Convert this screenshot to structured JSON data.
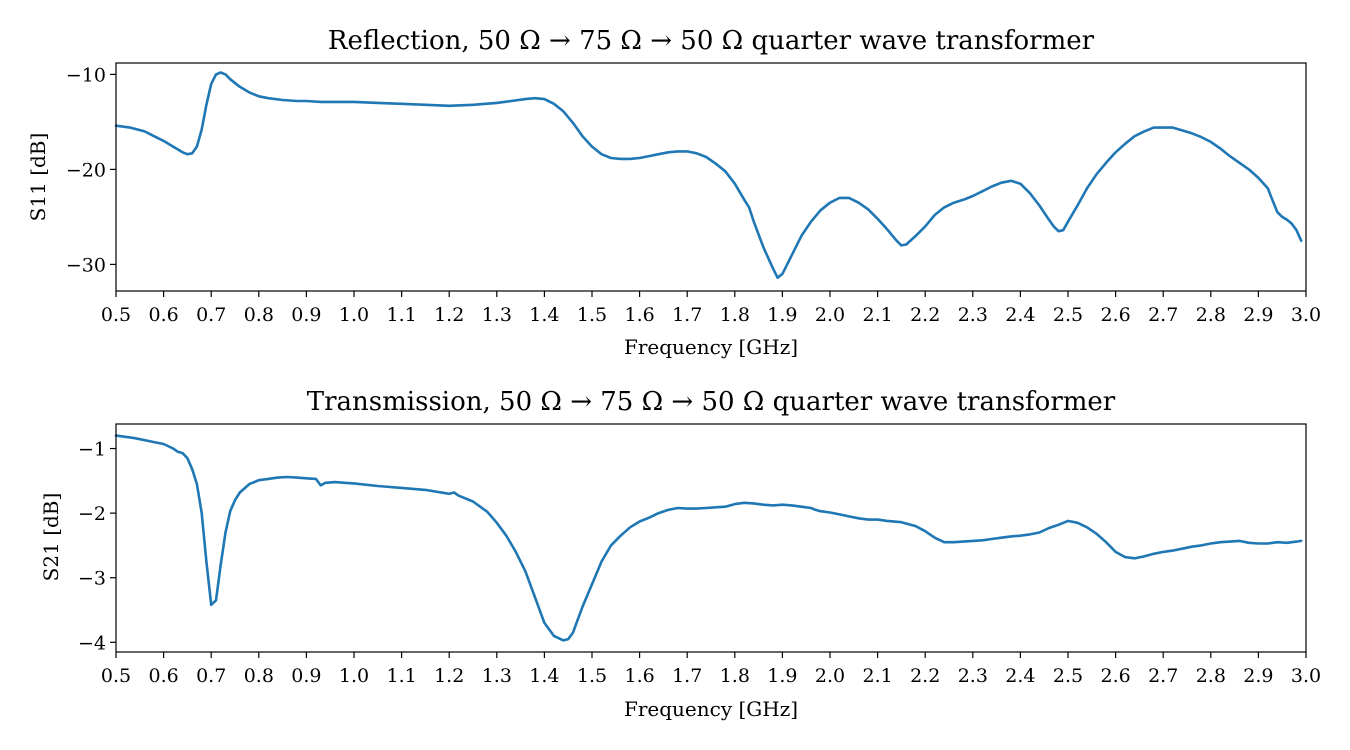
{
  "chart_data": [
    {
      "type": "line",
      "title": "Reflection, 50 Ω → 75 Ω → 50 Ω quarter wave transformer",
      "xlabel": "Frequency [GHz]",
      "ylabel": "S11 [dB]",
      "xlim": [
        0.5,
        3.0
      ],
      "ylim": [
        -32.8,
        -8.8
      ],
      "xticks": [
        0.5,
        0.6,
        0.7,
        0.8,
        0.9,
        1.0,
        1.1,
        1.2,
        1.3,
        1.4,
        1.5,
        1.6,
        1.7,
        1.8,
        1.9,
        2.0,
        2.1,
        2.2,
        2.3,
        2.4,
        2.5,
        2.6,
        2.7,
        2.8,
        2.9,
        3.0
      ],
      "xtick_labels": [
        "0.5",
        "0.6",
        "0.7",
        "0.8",
        "0.9",
        "1.0",
        "1.1",
        "1.2",
        "1.3",
        "1.4",
        "1.5",
        "1.6",
        "1.7",
        "1.8",
        "1.9",
        "2.0",
        "2.1",
        "2.2",
        "2.3",
        "2.4",
        "2.5",
        "2.6",
        "2.7",
        "2.8",
        "2.9",
        "3.0"
      ],
      "yticks": [
        -10,
        -20,
        -30
      ],
      "ytick_labels": [
        "−10",
        "−20",
        "−30"
      ],
      "grid": false,
      "series": [
        {
          "color": "#1f77b4",
          "x": [
            0.5,
            0.53,
            0.56,
            0.58,
            0.6,
            0.62,
            0.64,
            0.65,
            0.66,
            0.67,
            0.68,
            0.69,
            0.7,
            0.71,
            0.72,
            0.73,
            0.74,
            0.76,
            0.78,
            0.8,
            0.82,
            0.85,
            0.88,
            0.9,
            0.93,
            0.95,
            1.0,
            1.05,
            1.1,
            1.15,
            1.2,
            1.25,
            1.3,
            1.33,
            1.36,
            1.38,
            1.4,
            1.42,
            1.44,
            1.46,
            1.48,
            1.5,
            1.52,
            1.54,
            1.56,
            1.58,
            1.6,
            1.62,
            1.64,
            1.66,
            1.68,
            1.7,
            1.72,
            1.74,
            1.76,
            1.78,
            1.8,
            1.82,
            1.83,
            1.84,
            1.86,
            1.88,
            1.89,
            1.9,
            1.92,
            1.94,
            1.96,
            1.98,
            2.0,
            2.02,
            2.04,
            2.06,
            2.08,
            2.1,
            2.12,
            2.14,
            2.15,
            2.16,
            2.18,
            2.2,
            2.22,
            2.24,
            2.26,
            2.28,
            2.3,
            2.32,
            2.34,
            2.36,
            2.38,
            2.4,
            2.42,
            2.44,
            2.46,
            2.47,
            2.48,
            2.49,
            2.5,
            2.52,
            2.54,
            2.56,
            2.58,
            2.6,
            2.62,
            2.64,
            2.66,
            2.68,
            2.7,
            2.72,
            2.74,
            2.76,
            2.78,
            2.8,
            2.82,
            2.84,
            2.86,
            2.88,
            2.9,
            2.92,
            2.93,
            2.94,
            2.95,
            2.96,
            2.97,
            2.98,
            2.99
          ],
          "y": [
            -15.4,
            -15.6,
            -16.0,
            -16.5,
            -17.0,
            -17.6,
            -18.2,
            -18.4,
            -18.3,
            -17.6,
            -15.8,
            -13.2,
            -11.0,
            -10.0,
            -9.8,
            -10.0,
            -10.5,
            -11.3,
            -11.9,
            -12.3,
            -12.5,
            -12.7,
            -12.8,
            -12.8,
            -12.9,
            -12.9,
            -12.9,
            -13.0,
            -13.1,
            -13.2,
            -13.3,
            -13.2,
            -13.0,
            -12.8,
            -12.6,
            -12.5,
            -12.6,
            -13.1,
            -13.9,
            -15.1,
            -16.5,
            -17.6,
            -18.4,
            -18.8,
            -18.9,
            -18.9,
            -18.8,
            -18.6,
            -18.4,
            -18.2,
            -18.1,
            -18.1,
            -18.3,
            -18.7,
            -19.4,
            -20.2,
            -21.5,
            -23.2,
            -24.0,
            -25.5,
            -28.2,
            -30.4,
            -31.4,
            -31.0,
            -29.0,
            -27.0,
            -25.5,
            -24.3,
            -23.5,
            -23.0,
            -23.0,
            -23.5,
            -24.2,
            -25.2,
            -26.3,
            -27.5,
            -28.0,
            -27.9,
            -27.0,
            -26.0,
            -24.8,
            -24.0,
            -23.5,
            -23.2,
            -22.8,
            -22.3,
            -21.8,
            -21.4,
            -21.2,
            -21.5,
            -22.5,
            -23.8,
            -25.3,
            -26.0,
            -26.5,
            -26.4,
            -25.5,
            -23.8,
            -22.0,
            -20.5,
            -19.3,
            -18.2,
            -17.3,
            -16.5,
            -16.0,
            -15.6,
            -15.6,
            -15.6,
            -15.9,
            -16.2,
            -16.6,
            -17.1,
            -17.8,
            -18.6,
            -19.3,
            -20.0,
            -20.9,
            -22.0,
            -23.3,
            -24.5,
            -25.0,
            -25.3,
            -25.7,
            -26.4,
            -27.5
          ],
          "y_note": ""
        }
      ]
    },
    {
      "type": "line",
      "title": "Transmission, 50 Ω → 75 Ω → 50 Ω quarter wave transformer",
      "xlabel": "Frequency [GHz]",
      "ylabel": "S21 [dB]",
      "xlim": [
        0.5,
        3.0
      ],
      "ylim": [
        -4.15,
        -0.62
      ],
      "xticks": [
        0.5,
        0.6,
        0.7,
        0.8,
        0.9,
        1.0,
        1.1,
        1.2,
        1.3,
        1.4,
        1.5,
        1.6,
        1.7,
        1.8,
        1.9,
        2.0,
        2.1,
        2.2,
        2.3,
        2.4,
        2.5,
        2.6,
        2.7,
        2.8,
        2.9,
        3.0
      ],
      "xtick_labels": [
        "0.5",
        "0.6",
        "0.7",
        "0.8",
        "0.9",
        "1.0",
        "1.1",
        "1.2",
        "1.3",
        "1.4",
        "1.5",
        "1.6",
        "1.7",
        "1.8",
        "1.9",
        "2.0",
        "2.1",
        "2.2",
        "2.3",
        "2.4",
        "2.5",
        "2.6",
        "2.7",
        "2.8",
        "2.9",
        "3.0"
      ],
      "yticks": [
        -1,
        -2,
        -3,
        -4
      ],
      "ytick_labels": [
        "−1",
        "−2",
        "−3",
        "−4"
      ],
      "grid": false,
      "series": [
        {
          "color": "#1f77b4",
          "x": [
            0.5,
            0.54,
            0.58,
            0.6,
            0.62,
            0.63,
            0.64,
            0.65,
            0.66,
            0.67,
            0.68,
            0.69,
            0.7,
            0.71,
            0.72,
            0.73,
            0.74,
            0.75,
            0.76,
            0.78,
            0.8,
            0.82,
            0.84,
            0.86,
            0.88,
            0.9,
            0.92,
            0.93,
            0.94,
            0.96,
            0.98,
            1.0,
            1.05,
            1.1,
            1.15,
            1.2,
            1.21,
            1.22,
            1.25,
            1.28,
            1.3,
            1.32,
            1.34,
            1.36,
            1.38,
            1.4,
            1.42,
            1.44,
            1.45,
            1.46,
            1.47,
            1.48,
            1.5,
            1.52,
            1.54,
            1.56,
            1.58,
            1.6,
            1.62,
            1.64,
            1.66,
            1.68,
            1.7,
            1.72,
            1.74,
            1.76,
            1.78,
            1.8,
            1.82,
            1.84,
            1.86,
            1.88,
            1.9,
            1.92,
            1.94,
            1.96,
            1.97,
            1.98,
            2.0,
            2.02,
            2.04,
            2.06,
            2.08,
            2.1,
            2.12,
            2.15,
            2.18,
            2.2,
            2.22,
            2.24,
            2.26,
            2.28,
            2.3,
            2.32,
            2.34,
            2.36,
            2.38,
            2.4,
            2.42,
            2.44,
            2.46,
            2.48,
            2.5,
            2.52,
            2.54,
            2.56,
            2.58,
            2.6,
            2.62,
            2.64,
            2.66,
            2.68,
            2.7,
            2.72,
            2.74,
            2.76,
            2.78,
            2.8,
            2.82,
            2.84,
            2.86,
            2.88,
            2.9,
            2.92,
            2.94,
            2.96,
            2.98,
            2.99
          ],
          "y": [
            -0.8,
            -0.84,
            -0.9,
            -0.93,
            -1.0,
            -1.05,
            -1.07,
            -1.15,
            -1.32,
            -1.55,
            -2.0,
            -2.75,
            -3.42,
            -3.35,
            -2.8,
            -2.3,
            -1.97,
            -1.8,
            -1.68,
            -1.55,
            -1.49,
            -1.47,
            -1.45,
            -1.44,
            -1.45,
            -1.46,
            -1.47,
            -1.57,
            -1.53,
            -1.52,
            -1.53,
            -1.54,
            -1.58,
            -1.61,
            -1.64,
            -1.7,
            -1.68,
            -1.73,
            -1.82,
            -1.98,
            -2.15,
            -2.35,
            -2.6,
            -2.9,
            -3.3,
            -3.7,
            -3.9,
            -3.97,
            -3.95,
            -3.85,
            -3.65,
            -3.45,
            -3.1,
            -2.75,
            -2.5,
            -2.35,
            -2.22,
            -2.13,
            -2.07,
            -2.0,
            -1.95,
            -1.92,
            -1.93,
            -1.93,
            -1.92,
            -1.91,
            -1.9,
            -1.86,
            -1.84,
            -1.85,
            -1.87,
            -1.88,
            -1.87,
            -1.88,
            -1.9,
            -1.92,
            -1.95,
            -1.97,
            -1.99,
            -2.02,
            -2.05,
            -2.08,
            -2.1,
            -2.1,
            -2.12,
            -2.14,
            -2.2,
            -2.28,
            -2.38,
            -2.45,
            -2.45,
            -2.44,
            -2.43,
            -2.42,
            -2.4,
            -2.38,
            -2.36,
            -2.35,
            -2.33,
            -2.3,
            -2.23,
            -2.18,
            -2.12,
            -2.15,
            -2.22,
            -2.32,
            -2.45,
            -2.6,
            -2.68,
            -2.7,
            -2.67,
            -2.63,
            -2.6,
            -2.58,
            -2.55,
            -2.52,
            -2.5,
            -2.47,
            -2.45,
            -2.44,
            -2.43,
            -2.46,
            -2.47,
            -2.47,
            -2.45,
            -2.46,
            -2.44,
            -2.43
          ]
        }
      ]
    }
  ]
}
